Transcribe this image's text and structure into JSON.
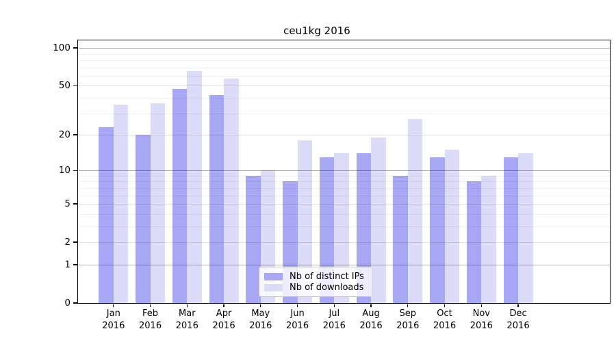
{
  "chart_data": {
    "type": "bar",
    "title": "ceu1kg 2016",
    "categories": [
      "Jan",
      "Feb",
      "Mar",
      "Apr",
      "May",
      "Jun",
      "Jul",
      "Aug",
      "Sep",
      "Oct",
      "Nov",
      "Dec"
    ],
    "x_sublabel": "2016",
    "series": [
      {
        "name": "Nb of distinct IPs",
        "color": "#a7a7f4",
        "values": [
          23,
          20,
          47,
          42,
          9,
          8,
          13,
          14,
          9,
          13,
          8,
          13
        ]
      },
      {
        "name": "Nb of downloads",
        "color": "#dcdcf8",
        "values": [
          35,
          36,
          65,
          57,
          10,
          18,
          14,
          19,
          27,
          15,
          9,
          14
        ]
      }
    ],
    "yscale": "log1p",
    "ylim": [
      0,
      110
    ],
    "yticks": [
      100,
      50,
      20,
      10,
      5,
      2,
      1,
      0
    ],
    "major_grid_values": [
      100,
      10,
      1
    ],
    "minor_gridlines": [
      90,
      80,
      70,
      60,
      40,
      30,
      9,
      8,
      7,
      6,
      4,
      3
    ],
    "grid": true,
    "legend": {
      "position": "inside-bottom-center",
      "items": [
        {
          "label": "Nb of distinct IPs",
          "color": "#a7a7f4"
        },
        {
          "label": "Nb of downloads",
          "color": "#dcdcf8"
        }
      ]
    }
  }
}
